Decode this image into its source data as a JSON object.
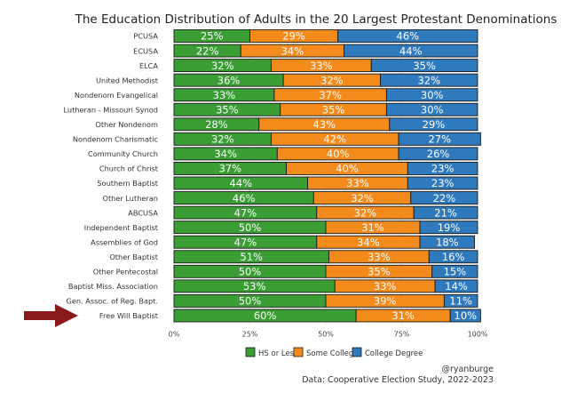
{
  "chart_data": {
    "type": "bar",
    "orientation": "horizontal",
    "stacked": true,
    "title": "The Education Distribution of Adults in the 20 Largest Protestant Denominations",
    "xlabel": "",
    "ylabel": "",
    "xlim": [
      0,
      100
    ],
    "x_ticks": [
      "0%",
      "25%",
      "50%",
      "75%",
      "100%"
    ],
    "grid": true,
    "legend_position": "bottom",
    "categories": [
      "PCUSA",
      "ECUSA",
      "ELCA",
      "United Methodist",
      "Nondenom Evangelical",
      "Lutheran - Missouri Synod",
      "Other Nondenom",
      "Nondenom Charismatic",
      "Community Church",
      "Church of Christ",
      "Southern Baptist",
      "Other Lutheran",
      "ABCUSA",
      "Independent Baptist",
      "Assemblies of God",
      "Other Baptist",
      "Other Pentecostal",
      "Baptist Miss. Association",
      "Gen. Assoc. of Reg. Bapt.",
      "Free Will Baptist"
    ],
    "series": [
      {
        "name": "HS or Less",
        "color": "#3a9e35",
        "values": [
          25,
          22,
          32,
          36,
          33,
          35,
          28,
          32,
          34,
          37,
          44,
          46,
          47,
          50,
          47,
          51,
          50,
          53,
          50,
          60
        ]
      },
      {
        "name": "Some College",
        "color": "#f28a1c",
        "values": [
          29,
          34,
          33,
          32,
          37,
          35,
          43,
          42,
          40,
          40,
          33,
          32,
          32,
          31,
          34,
          33,
          35,
          33,
          39,
          31
        ]
      },
      {
        "name": "College Degree",
        "color": "#2f79bd",
        "values": [
          46,
          44,
          35,
          32,
          30,
          30,
          29,
          27,
          26,
          23,
          23,
          22,
          21,
          19,
          18,
          16,
          15,
          14,
          11,
          10
        ]
      }
    ],
    "highlight": {
      "category": "Free Will Baptist",
      "marker": "arrow",
      "color": "#8b1a1a"
    },
    "credit": "@ryanburge",
    "source": "Data: Cooperative Election Study, 2022-2023"
  }
}
